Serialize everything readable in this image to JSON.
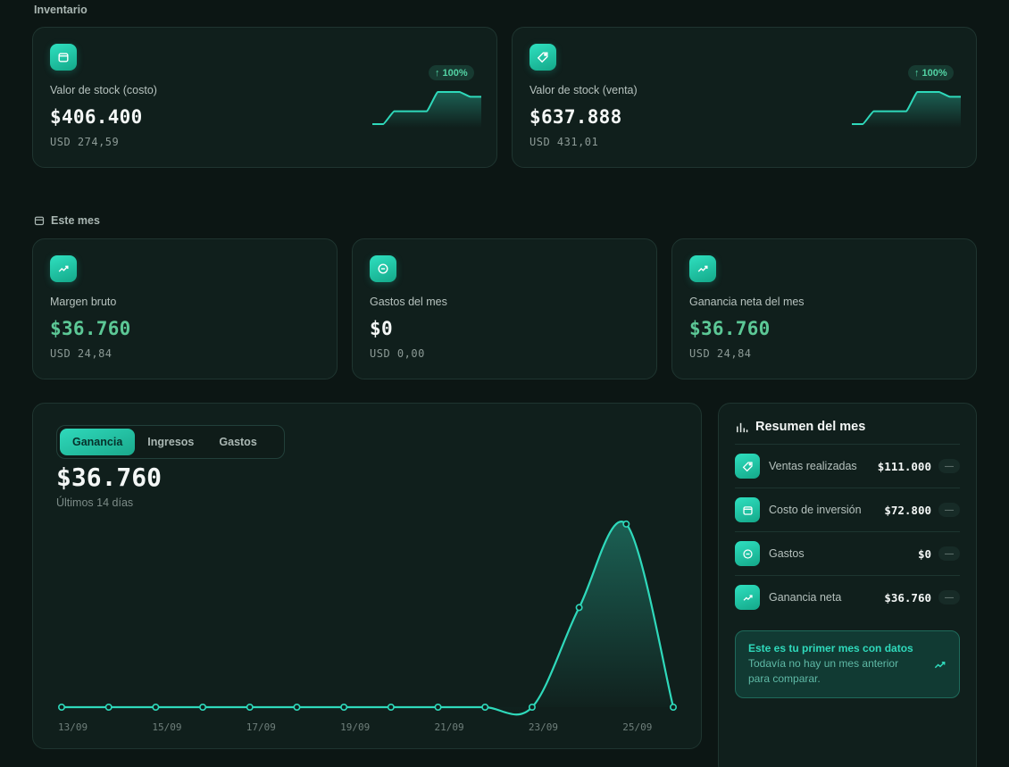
{
  "sections": {
    "inventory": "Inventario",
    "this_month": "Este mes"
  },
  "inventory_cards": [
    {
      "label": "Valor de stock (costo)",
      "value": "$406.400",
      "usd": "USD 274,59",
      "change": "100%",
      "icon": "calendar-icon",
      "trend": [
        0,
        0,
        0.4,
        0.4,
        0.4,
        0.4,
        1,
        1,
        1,
        0.85,
        0.85
      ]
    },
    {
      "label": "Valor de stock (venta)",
      "value": "$637.888",
      "usd": "USD 431,01",
      "change": "100%",
      "icon": "tag-icon",
      "trend": [
        0,
        0,
        0.4,
        0.4,
        0.4,
        0.4,
        1,
        1,
        1,
        0.85,
        0.85
      ]
    }
  ],
  "month_cards": [
    {
      "label": "Margen bruto",
      "value": "$36.760",
      "usd": "USD 24,84",
      "icon": "trend-up-icon"
    },
    {
      "label": "Gastos del mes",
      "value": "$0",
      "usd": "USD 0,00",
      "icon": "minus-circle-icon"
    },
    {
      "label": "Ganancia neta del mes",
      "value": "$36.760",
      "usd": "USD 24,84",
      "icon": "trend-up-icon"
    }
  ],
  "chart": {
    "tabs": [
      "Ganancia",
      "Ingresos",
      "Gastos"
    ],
    "active_tab": "Ganancia",
    "total": "$36.760",
    "period": "Últimos 14 días"
  },
  "chart_data": {
    "type": "area",
    "x": [
      "13/09",
      "14/09",
      "15/09",
      "16/09",
      "17/09",
      "18/09",
      "19/09",
      "20/09",
      "21/09",
      "22/09",
      "23/09",
      "24/09",
      "25/09",
      "26/09"
    ],
    "tick_labels": [
      "13/09",
      "15/09",
      "17/09",
      "19/09",
      "21/09",
      "23/09",
      "25/09"
    ],
    "values": [
      0,
      0,
      0,
      0,
      0,
      0,
      0,
      0,
      0,
      0,
      0,
      20000,
      36760,
      0
    ],
    "ylim": [
      0,
      38000
    ],
    "grid": false,
    "color": "#2fd9bb"
  },
  "summary": {
    "title": "Resumen del mes",
    "rows": [
      {
        "label": "Ventas realizadas",
        "value": "$111.000",
        "change": "—",
        "icon": "tag-icon"
      },
      {
        "label": "Costo de inversión",
        "value": "$72.800",
        "change": "—",
        "icon": "calendar-icon"
      },
      {
        "label": "Gastos",
        "value": "$0",
        "change": "—",
        "icon": "minus-circle-icon"
      },
      {
        "label": "Ganancia neta",
        "value": "$36.760",
        "change": "—",
        "icon": "trend-up-icon"
      }
    ],
    "notice_title": "Este es tu primer mes con datos",
    "notice_text": "Todavía no hay un mes anterior para comparar."
  },
  "colors": {
    "accent": "#2fd9bb",
    "positive": "#5cc896",
    "background": "#0c1614",
    "card": "#101f1c"
  }
}
